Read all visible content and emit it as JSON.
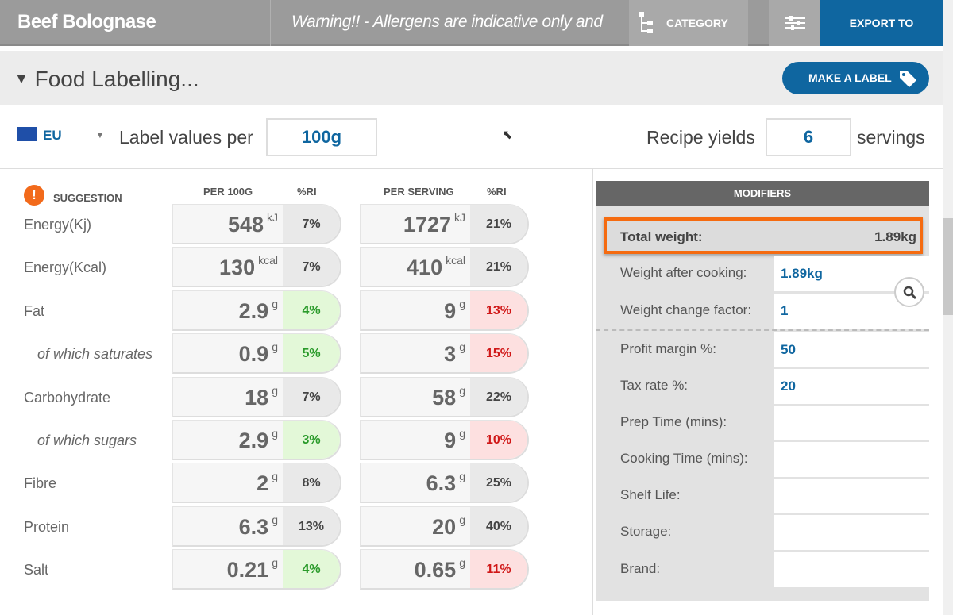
{
  "header": {
    "title": "Beef Bolognase",
    "warning": "Warning!! - Allergens are indicative only and",
    "category_label": "CATEGORY",
    "export_label": "EXPORT TO",
    "category_icon": "hierarchy-icon",
    "filter_icon": "sliders-icon"
  },
  "section": {
    "title": "Food Labelling...",
    "make_label": "MAKE A LABEL",
    "make_label_icon": "tag-icon"
  },
  "controls": {
    "region": "EU",
    "label_values_per": "Label values per",
    "per_value": "100g",
    "recipe_yields": "Recipe yields",
    "servings_value": "6",
    "servings": "servings"
  },
  "table": {
    "suggestion": "SUGGESTION",
    "headers": {
      "per100": "PER 100G",
      "ri1": "%RI",
      "per_serving": "PER SERVING",
      "ri2": "%RI"
    },
    "rows": [
      {
        "label": "Energy(Kj)",
        "v100": "548",
        "u": "kJ",
        "ri100": "7%",
        "vs": "1727",
        "ris": "21%",
        "c100": "",
        "cs": "",
        "sub": false
      },
      {
        "label": "Energy(Kcal)",
        "v100": "130",
        "u": "kcal",
        "ri100": "7%",
        "vs": "410",
        "ris": "21%",
        "c100": "",
        "cs": "",
        "sub": false
      },
      {
        "label": "Fat",
        "v100": "2.9",
        "u": "g",
        "ri100": "4%",
        "vs": "9",
        "ris": "13%",
        "c100": "green",
        "cs": "red",
        "sub": false
      },
      {
        "label": "of which saturates",
        "v100": "0.9",
        "u": "g",
        "ri100": "5%",
        "vs": "3",
        "ris": "15%",
        "c100": "green",
        "cs": "red",
        "sub": true
      },
      {
        "label": "Carbohydrate",
        "v100": "18",
        "u": "g",
        "ri100": "7%",
        "vs": "58",
        "ris": "22%",
        "c100": "",
        "cs": "",
        "sub": false
      },
      {
        "label": "of which sugars",
        "v100": "2.9",
        "u": "g",
        "ri100": "3%",
        "vs": "9",
        "ris": "10%",
        "c100": "green",
        "cs": "red",
        "sub": true
      },
      {
        "label": "Fibre",
        "v100": "2",
        "u": "g",
        "ri100": "8%",
        "vs": "6.3",
        "ris": "25%",
        "c100": "",
        "cs": "",
        "sub": false
      },
      {
        "label": "Protein",
        "v100": "6.3",
        "u": "g",
        "ri100": "13%",
        "vs": "20",
        "ris": "40%",
        "c100": "",
        "cs": "",
        "sub": false
      },
      {
        "label": "Salt",
        "v100": "0.21",
        "u": "g",
        "ri100": "4%",
        "vs": "0.65",
        "ris": "11%",
        "c100": "green",
        "cs": "red",
        "sub": false
      }
    ]
  },
  "modifiers": {
    "title": "MODIFIERS",
    "total_weight_label": "Total weight:",
    "total_weight": "1.89kg",
    "rows": [
      {
        "label": "Weight after cooking:",
        "value": "1.89kg"
      },
      {
        "label": "Weight change factor:",
        "value": "1"
      },
      {
        "label": "Profit margin %:",
        "value": "50"
      },
      {
        "label": "Tax rate %:",
        "value": "20"
      },
      {
        "label": "Prep Time (mins):",
        "value": ""
      },
      {
        "label": "Cooking Time (mins):",
        "value": ""
      },
      {
        "label": "Shelf Life:",
        "value": ""
      },
      {
        "label": "Storage:",
        "value": ""
      },
      {
        "label": "Brand:",
        "value": ""
      }
    ]
  },
  "colors": {
    "brand": "#0f66a0",
    "highlight": "#f56b10",
    "good": "#2a9a2a",
    "bad": "#d01818"
  }
}
